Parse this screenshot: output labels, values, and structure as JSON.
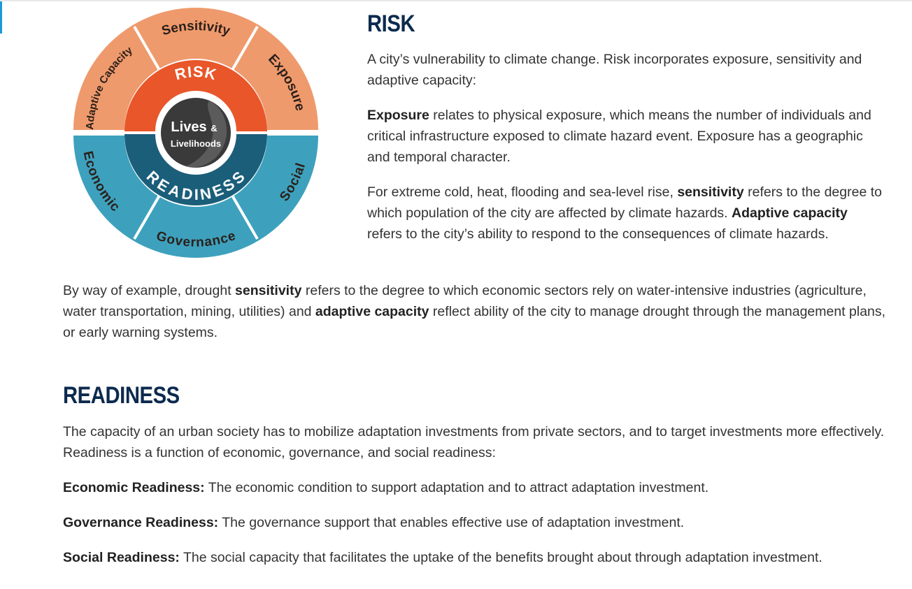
{
  "diagram": {
    "outer_top": [
      "Adaptive Capacity",
      "Sensitivity",
      "Exposure"
    ],
    "outer_bottom": [
      "Economic",
      "Governance",
      "Social"
    ],
    "ring_top": "RISK",
    "ring_bottom": "READINESS",
    "center_line1": "Lives",
    "center_amp": "&",
    "center_line2": "Livelihoods",
    "colors": {
      "risk_outer": "#ef9a6c",
      "risk_ring": "#e8562a",
      "readiness_outer": "#3da1bd",
      "readiness_ring": "#1b5e7a",
      "center": "#3a3a3a"
    }
  },
  "risk": {
    "heading": "RISK",
    "intro": "A city’s vulnerability to climate change. Risk incorporates exposure, sensitivity and adaptive capacity:",
    "exposure_term": "Exposure",
    "exposure_text": " relates to physical exposure, which means the number of individuals and critical infrastructure  exposed to climate hazard event. Exposure has a geographic and temporal character.",
    "cold_text1": "For extreme cold, heat, flooding and sea-level rise, ",
    "cold_term1": "sensitivity",
    "cold_text2": " refers to the degree to which population of the city are affected by climate hazards. ",
    "cold_term2": "Adaptive capacity",
    "cold_text3": " refers to the city’s ability to respond to the consequences of climate hazards."
  },
  "example": {
    "text1": "By way of example, drought ",
    "term1": "sensitivity",
    "text2": " refers to the degree to which economic sectors rely on water-intensive industries (agriculture, water transportation, mining, utilities) and ",
    "term2": "adaptive capacity",
    "text3": " reflect ability of the city to manage drought through the management plans, or early warning systems."
  },
  "readiness": {
    "heading": "READINESS",
    "intro": "The capacity of an urban society has to mobilize adaptation investments from private sectors, and to target investments more effectively. Readiness is a function of economic, governance, and social readiness:",
    "economic_term": "Economic Readiness:",
    "economic_text": " The economic condition to support adaptation and to attract adaptation investment.",
    "governance_term": "Governance Readiness:",
    "governance_text": " The governance support that enables effective use of adaptation investment.",
    "social_term": "Social Readiness:",
    "social_text": " The social capacity that facilitates the uptake of the benefits brought about through adaptation investment."
  }
}
